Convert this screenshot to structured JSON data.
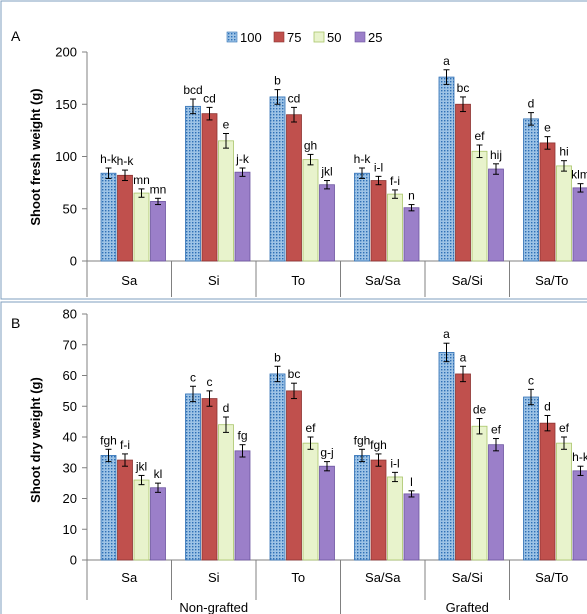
{
  "colors": {
    "border": "#7f9fbf",
    "axis": "#808080",
    "s100_fill": "#9dc3e6",
    "s100_dot": "#2e6fb5",
    "s75": "#c0504d",
    "s50_fill": "#e8f3cc",
    "s50_line": "#a9c56a",
    "s25": "#9b7fc9"
  },
  "chart_data": [
    {
      "type": "bar",
      "panel_label": "A",
      "ylabel": "Shoot fresh weight (g)",
      "ylim": [
        0,
        200
      ],
      "yticks": [
        0,
        50,
        100,
        150,
        200
      ],
      "grid": false,
      "legend_position": "top",
      "categories": [
        "Sa",
        "Si",
        "To",
        "Sa/Sa",
        "Sa/Si",
        "Sa/To"
      ],
      "series": [
        {
          "name": "100",
          "values": [
            84,
            148,
            157,
            84,
            176,
            136
          ],
          "errors": [
            5,
            7,
            7,
            5,
            7,
            6
          ],
          "labels": [
            "h-k",
            "bcd",
            "b",
            "h-k",
            "a",
            "d"
          ]
        },
        {
          "name": "75",
          "values": [
            82,
            141,
            140,
            77,
            150,
            113
          ],
          "errors": [
            5,
            6,
            7,
            4,
            7,
            6
          ],
          "labels": [
            "h-k",
            "cd",
            "cd",
            "i-l",
            "bc",
            "e"
          ]
        },
        {
          "name": "50",
          "values": [
            65,
            115,
            97,
            64,
            105,
            91
          ],
          "errors": [
            4,
            7,
            5,
            4,
            6,
            5
          ],
          "labels": [
            "mn",
            "e",
            "gh",
            "f-i",
            "ef",
            "hi"
          ]
        },
        {
          "name": "25",
          "values": [
            57,
            85,
            73,
            51,
            88,
            70
          ],
          "errors": [
            3,
            4,
            4,
            3,
            5,
            4
          ],
          "labels": [
            "mn",
            "j-k",
            "jkl",
            "n",
            "hij",
            "klm"
          ]
        }
      ]
    },
    {
      "type": "bar",
      "panel_label": "B",
      "ylabel": "Shoot dry weight (g)",
      "ylim": [
        0,
        80
      ],
      "yticks": [
        0,
        10,
        20,
        30,
        40,
        50,
        60,
        70,
        80
      ],
      "grid": false,
      "categories": [
        "Sa",
        "Si",
        "To",
        "Sa/Sa",
        "Sa/Si",
        "Sa/To"
      ],
      "groups": [
        {
          "label": "Non-grafted",
          "span": [
            0,
            2
          ]
        },
        {
          "label": "Grafted",
          "span": [
            3,
            5
          ]
        }
      ],
      "series": [
        {
          "name": "100",
          "values": [
            34,
            54,
            60.5,
            34,
            67.5,
            53
          ],
          "errors": [
            2,
            2.5,
            2.5,
            2,
            3,
            2.5
          ],
          "labels": [
            "fgh",
            "c",
            "b",
            "fgh",
            "a",
            "c"
          ]
        },
        {
          "name": "75",
          "values": [
            32.5,
            52.5,
            55,
            32.5,
            60.5,
            44.5
          ],
          "errors": [
            2,
            2.5,
            2.5,
            2,
            2.5,
            2.5
          ],
          "labels": [
            "f-i",
            "c",
            "bc",
            "fgh",
            "a",
            "d"
          ]
        },
        {
          "name": "50",
          "values": [
            26,
            44,
            38,
            27,
            43.5,
            38
          ],
          "errors": [
            1.5,
            2.5,
            2,
            1.5,
            2.5,
            2
          ],
          "labels": [
            "jkl",
            "d",
            "ef",
            "i-l",
            "de",
            "ef"
          ]
        },
        {
          "name": "25",
          "values": [
            23.5,
            35.5,
            30.5,
            21.5,
            37.5,
            29
          ],
          "errors": [
            1.5,
            2,
            1.5,
            1,
            2,
            1.5
          ],
          "labels": [
            "kl",
            "fg",
            "g-j",
            "l",
            "ef",
            "h-k"
          ]
        }
      ]
    }
  ]
}
